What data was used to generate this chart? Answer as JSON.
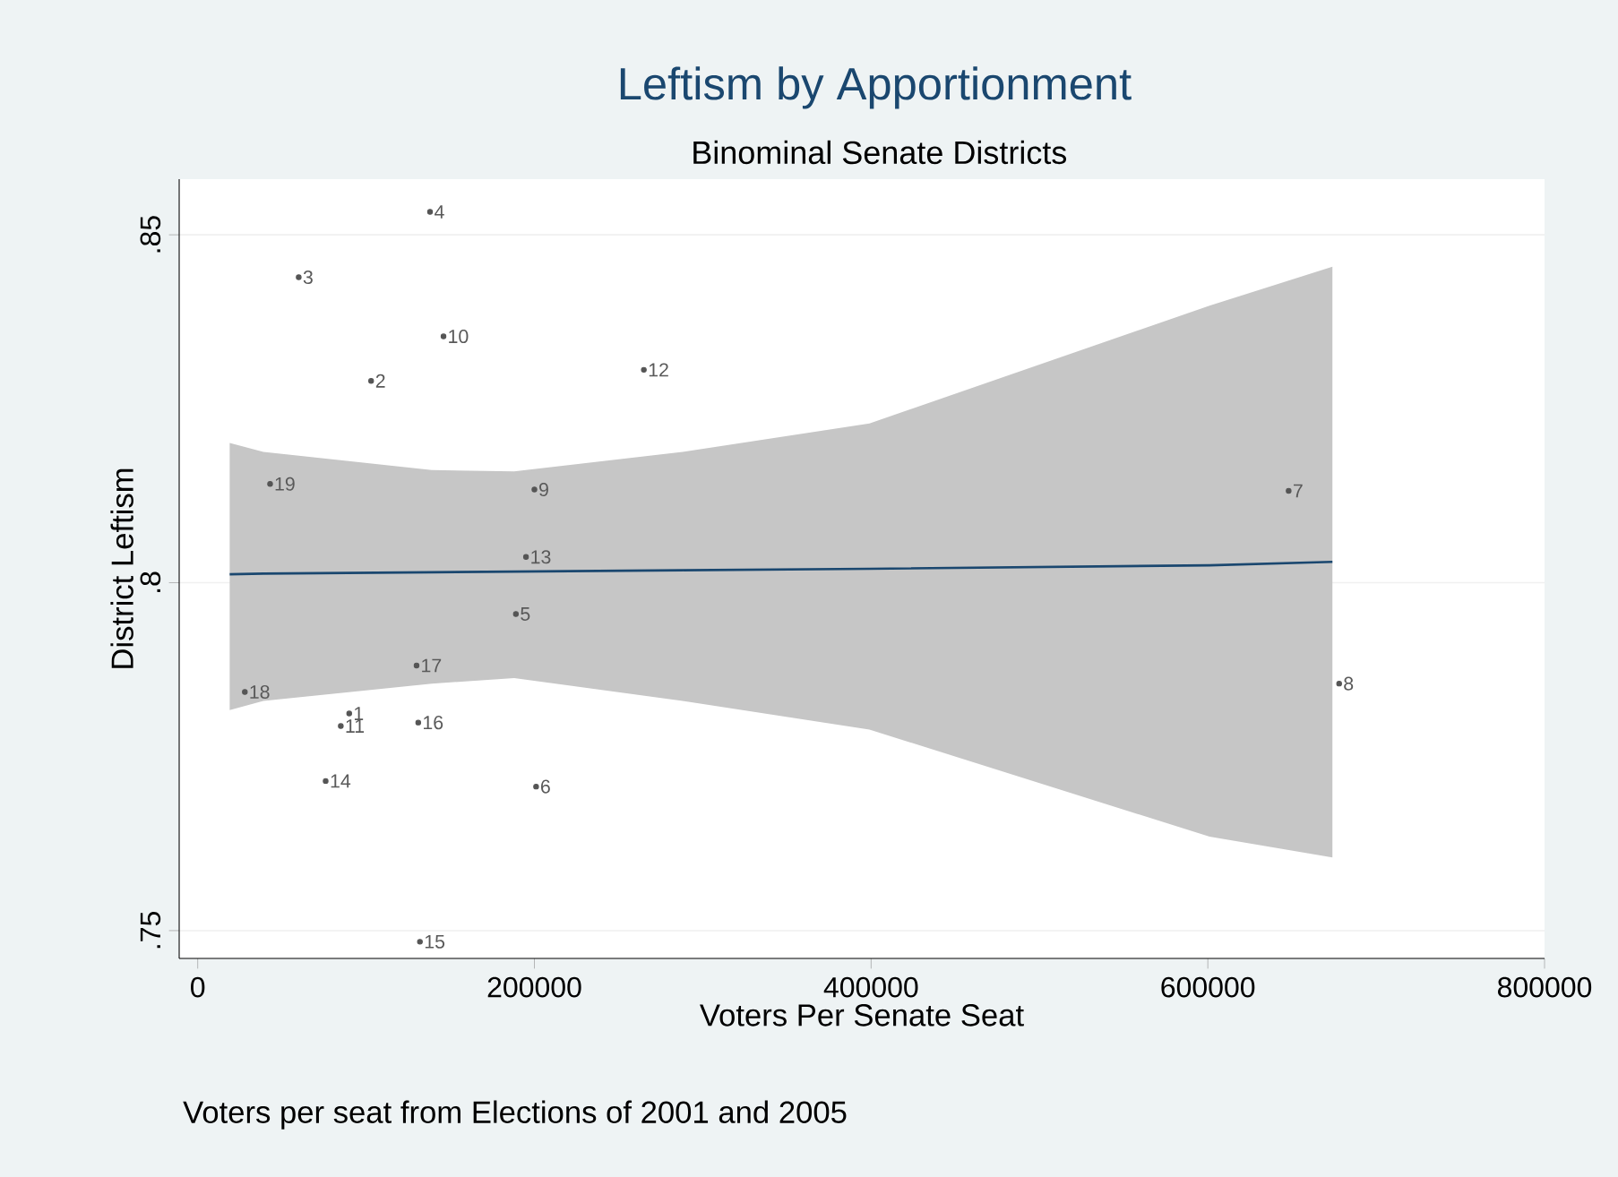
{
  "chart_data": {
    "type": "scatter",
    "title": "Leftism by Apportionment",
    "subtitle": "Binominal Senate Districts",
    "xlabel": "Voters Per Senate Seat",
    "ylabel": "District Leftism",
    "annotations": [
      "Voters per seat from Elections of 2001 and 2005",
      {
        "text": "1",
        "x": 90000,
        "y": 0.7812
      },
      {
        "text": "2",
        "x": 103000,
        "y": 0.829
      },
      {
        "text": "3",
        "x": 60000,
        "y": 0.8439
      },
      {
        "text": "4",
        "x": 138000,
        "y": 0.8533
      },
      {
        "text": "5",
        "x": 189000,
        "y": 0.7955
      },
      {
        "text": "6",
        "x": 201000,
        "y": 0.7707
      },
      {
        "text": "7",
        "x": 648000,
        "y": 0.8132
      },
      {
        "text": "8",
        "x": 678000,
        "y": 0.7855
      },
      {
        "text": "9",
        "x": 200000,
        "y": 0.8134
      },
      {
        "text": "10",
        "x": 146000,
        "y": 0.8354
      },
      {
        "text": "11",
        "x": 85000,
        "y": 0.7794
      },
      {
        "text": "12",
        "x": 265000,
        "y": 0.8306
      },
      {
        "text": "13",
        "x": 195000,
        "y": 0.8037
      },
      {
        "text": "14",
        "x": 76000,
        "y": 0.7715
      },
      {
        "text": "15",
        "x": 132000,
        "y": 0.7484
      },
      {
        "text": "16",
        "x": 131000,
        "y": 0.7799
      },
      {
        "text": "17",
        "x": 130000,
        "y": 0.7881
      },
      {
        "text": "18",
        "x": 28000,
        "y": 0.7843
      },
      {
        "text": "19",
        "x": 43000,
        "y": 0.8142
      }
    ],
    "xlim": [
      -11000,
      800000
    ],
    "ylim": [
      0.746,
      0.858
    ],
    "xticks": [
      0,
      200000,
      400000,
      600000,
      800000
    ],
    "yticks": [
      {
        "value": 0.75,
        "label": ".75"
      },
      {
        "value": 0.8,
        "label": ".8"
      },
      {
        "value": 0.85,
        "label": ".85"
      }
    ],
    "grid": "y",
    "series": [
      {
        "color": "#555555",
        "x": [
          90000,
          103000,
          60000,
          138000,
          189000,
          201000,
          648000,
          678000,
          200000,
          146000,
          85000,
          265000,
          195000,
          76000,
          132000,
          131000,
          130000,
          28000,
          43000
        ],
        "values": [
          0.7812,
          0.829,
          0.8439,
          0.8533,
          0.7955,
          0.7707,
          0.8132,
          0.7855,
          0.8134,
          0.8354,
          0.7794,
          0.8306,
          0.8037,
          0.7715,
          0.7484,
          0.7799,
          0.7881,
          0.7843,
          0.8142
        ]
      },
      {
        "type": "line",
        "color": "#1a476f",
        "x": [
          19000,
          39000,
          139000,
          188000,
          288000,
          399000,
          601000,
          674000
        ],
        "values": [
          0.8012,
          0.8013,
          0.8015,
          0.8016,
          0.8018,
          0.802,
          0.8025,
          0.803
        ],
        "lower": [
          0.7817,
          0.783,
          0.7855,
          0.7863,
          0.783,
          0.7789,
          0.7635,
          0.7605
        ],
        "upper": [
          0.8201,
          0.8188,
          0.8162,
          0.816,
          0.8188,
          0.8229,
          0.8398,
          0.8454
        ]
      }
    ]
  }
}
